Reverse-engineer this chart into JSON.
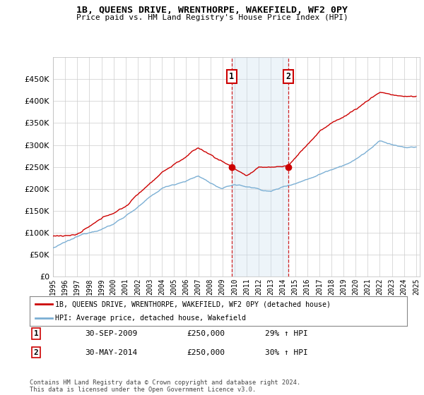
{
  "title": "1B, QUEENS DRIVE, WRENTHORPE, WAKEFIELD, WF2 0PY",
  "subtitle": "Price paid vs. HM Land Registry's House Price Index (HPI)",
  "red_label": "1B, QUEENS DRIVE, WRENTHORPE, WAKEFIELD, WF2 0PY (detached house)",
  "blue_label": "HPI: Average price, detached house, Wakefield",
  "transaction1_date": "30-SEP-2009",
  "transaction1_price": "£250,000",
  "transaction1_hpi": "29% ↑ HPI",
  "transaction2_date": "30-MAY-2014",
  "transaction2_price": "£250,000",
  "transaction2_hpi": "30% ↑ HPI",
  "footer": "Contains HM Land Registry data © Crown copyright and database right 2024.\nThis data is licensed under the Open Government Licence v3.0.",
  "ylim": [
    0,
    500000
  ],
  "yticks": [
    0,
    50000,
    100000,
    150000,
    200000,
    250000,
    300000,
    350000,
    400000,
    450000
  ],
  "red_color": "#cc0000",
  "blue_color": "#7bafd4",
  "shade_color": "#cce0f0",
  "transaction1_x": 2009.75,
  "transaction2_x": 2014.42,
  "background_color": "#ffffff",
  "grid_color": "#cccccc",
  "n_points": 361
}
